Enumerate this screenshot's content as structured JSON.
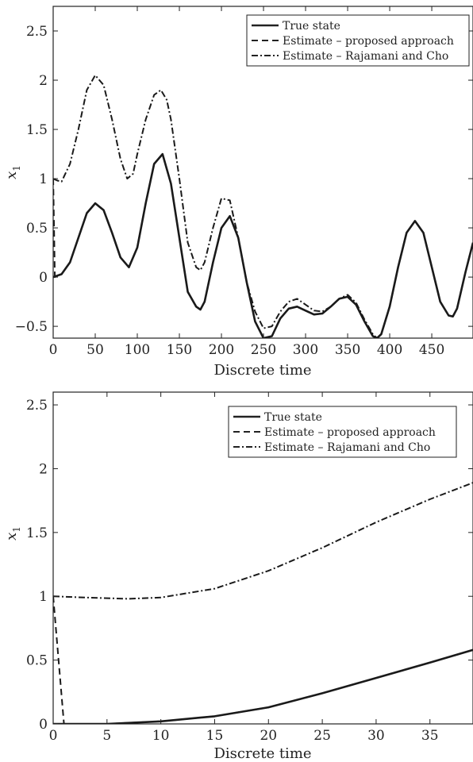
{
  "chart_data": [
    {
      "type": "line",
      "xlabel": "Discrete time",
      "ylabel": "x1",
      "xlim": [
        0,
        499
      ],
      "ylim": [
        -0.62,
        2.75
      ],
      "xticks": [
        0,
        50,
        100,
        150,
        200,
        250,
        300,
        350,
        400,
        450
      ],
      "xtick_labels": [
        "0",
        "50",
        "100",
        "150",
        "200",
        "250",
        "300",
        "350",
        "400",
        "450"
      ],
      "yticks": [
        -0.5,
        0,
        0.5,
        1,
        1.5,
        2,
        2.5
      ],
      "ytick_labels": [
        "−0.5",
        "0",
        "0.5",
        "1",
        "1.5",
        "2",
        "2.5"
      ],
      "legend": {
        "position": "top-right",
        "entries": [
          "True state",
          "Estimate – proposed approach",
          "Estimate – Rajamani and Cho"
        ]
      },
      "series": [
        {
          "name": "True state",
          "style": "solid",
          "x": [
            0,
            10,
            20,
            30,
            40,
            50,
            60,
            70,
            80,
            90,
            100,
            110,
            120,
            130,
            140,
            150,
            160,
            170,
            175,
            180,
            190,
            200,
            210,
            220,
            230,
            240,
            250,
            260,
            270,
            280,
            290,
            300,
            310,
            320,
            330,
            340,
            350,
            360,
            370,
            380,
            385,
            390,
            400,
            410,
            420,
            430,
            440,
            450,
            460,
            470,
            475,
            480,
            490,
            499
          ],
          "y": [
            0,
            0.03,
            0.15,
            0.4,
            0.65,
            0.75,
            0.68,
            0.45,
            0.2,
            0.1,
            0.3,
            0.75,
            1.15,
            1.25,
            0.95,
            0.4,
            -0.15,
            -0.3,
            -0.33,
            -0.25,
            0.15,
            0.5,
            0.62,
            0.4,
            -0.05,
            -0.45,
            -0.62,
            -0.6,
            -0.42,
            -0.32,
            -0.3,
            -0.34,
            -0.38,
            -0.37,
            -0.3,
            -0.22,
            -0.2,
            -0.28,
            -0.45,
            -0.6,
            -0.62,
            -0.58,
            -0.3,
            0.1,
            0.45,
            0.57,
            0.45,
            0.1,
            -0.25,
            -0.39,
            -0.4,
            -0.32,
            0.05,
            0.35
          ]
        },
        {
          "name": "Estimate – proposed approach",
          "style": "dashed",
          "x": [
            0,
            1,
            2,
            10,
            20,
            30,
            40,
            50,
            60,
            70,
            80,
            90,
            100,
            110,
            120,
            130,
            140,
            150,
            160,
            170,
            175,
            180,
            190,
            200,
            210,
            220,
            230,
            240,
            250,
            260,
            270,
            280,
            290,
            300,
            310,
            320,
            330,
            340,
            350,
            360,
            370,
            380,
            385,
            390,
            400,
            410,
            420,
            430,
            440,
            450,
            460,
            470,
            475,
            480,
            490,
            499
          ],
          "y": [
            1.0,
            0.5,
            0.0,
            0.03,
            0.15,
            0.4,
            0.65,
            0.75,
            0.68,
            0.45,
            0.2,
            0.1,
            0.3,
            0.75,
            1.15,
            1.25,
            0.95,
            0.4,
            -0.15,
            -0.3,
            -0.33,
            -0.25,
            0.15,
            0.5,
            0.62,
            0.4,
            -0.05,
            -0.45,
            -0.62,
            -0.6,
            -0.42,
            -0.32,
            -0.3,
            -0.34,
            -0.38,
            -0.37,
            -0.3,
            -0.22,
            -0.2,
            -0.28,
            -0.45,
            -0.6,
            -0.62,
            -0.58,
            -0.3,
            0.1,
            0.45,
            0.57,
            0.45,
            0.1,
            -0.25,
            -0.39,
            -0.4,
            -0.32,
            0.05,
            0.35
          ]
        },
        {
          "name": "Estimate – Rajamani and Cho",
          "style": "dashdot",
          "x": [
            0,
            5,
            10,
            20,
            30,
            40,
            50,
            60,
            70,
            80,
            88,
            95,
            100,
            110,
            120,
            128,
            135,
            140,
            150,
            160,
            170,
            175,
            180,
            190,
            200,
            210,
            220,
            230,
            240,
            250,
            260,
            270,
            280,
            290,
            300,
            310,
            320,
            330,
            340,
            350,
            360,
            370,
            380,
            385,
            390,
            400,
            410,
            420,
            430,
            440,
            450,
            460,
            470,
            475,
            480,
            490,
            499
          ],
          "y": [
            1.0,
            0.98,
            0.97,
            1.15,
            1.5,
            1.9,
            2.05,
            1.95,
            1.6,
            1.2,
            1.0,
            1.05,
            1.25,
            1.6,
            1.85,
            1.9,
            1.8,
            1.6,
            1.0,
            0.35,
            0.1,
            0.07,
            0.15,
            0.5,
            0.8,
            0.78,
            0.4,
            -0.05,
            -0.35,
            -0.52,
            -0.5,
            -0.35,
            -0.25,
            -0.22,
            -0.28,
            -0.34,
            -0.35,
            -0.3,
            -0.22,
            -0.18,
            -0.26,
            -0.43,
            -0.58,
            -0.62,
            -0.58,
            -0.3,
            0.1,
            0.45,
            0.57,
            0.45,
            0.1,
            -0.25,
            -0.39,
            -0.4,
            -0.32,
            0.05,
            0.35
          ]
        }
      ]
    },
    {
      "type": "line",
      "xlabel": "Discrete time",
      "ylabel": "x1",
      "xlim": [
        0,
        39
      ],
      "ylim": [
        0,
        2.6
      ],
      "xticks": [
        0,
        5,
        10,
        15,
        20,
        25,
        30,
        35
      ],
      "xtick_labels": [
        "0",
        "5",
        "10",
        "15",
        "20",
        "25",
        "30",
        "35"
      ],
      "yticks": [
        0,
        0.5,
        1,
        1.5,
        2,
        2.5
      ],
      "ytick_labels": [
        "0",
        "0.5",
        "1",
        "1.5",
        "2",
        "2.5"
      ],
      "legend": {
        "position": "top-right",
        "entries": [
          "True state",
          "Estimate – proposed approach",
          "Estimate – Rajamani and Cho"
        ]
      },
      "series": [
        {
          "name": "True state",
          "style": "solid",
          "x": [
            0,
            5,
            10,
            15,
            20,
            25,
            30,
            35,
            39
          ],
          "y": [
            0,
            0.0,
            0.02,
            0.06,
            0.13,
            0.24,
            0.36,
            0.48,
            0.58
          ]
        },
        {
          "name": "Estimate – proposed approach",
          "style": "dashed",
          "x": [
            0,
            0.5,
            1,
            5,
            10,
            15,
            20,
            25,
            30,
            35,
            39
          ],
          "y": [
            1.0,
            0.5,
            0.0,
            0.0,
            0.02,
            0.06,
            0.13,
            0.24,
            0.36,
            0.48,
            0.58
          ]
        },
        {
          "name": "Estimate – Rajamani and Cho",
          "style": "dashdot",
          "x": [
            0,
            3,
            7,
            10,
            15,
            20,
            25,
            30,
            35,
            39
          ],
          "y": [
            1.0,
            0.99,
            0.98,
            0.99,
            1.06,
            1.2,
            1.38,
            1.58,
            1.76,
            1.89
          ]
        }
      ]
    }
  ]
}
